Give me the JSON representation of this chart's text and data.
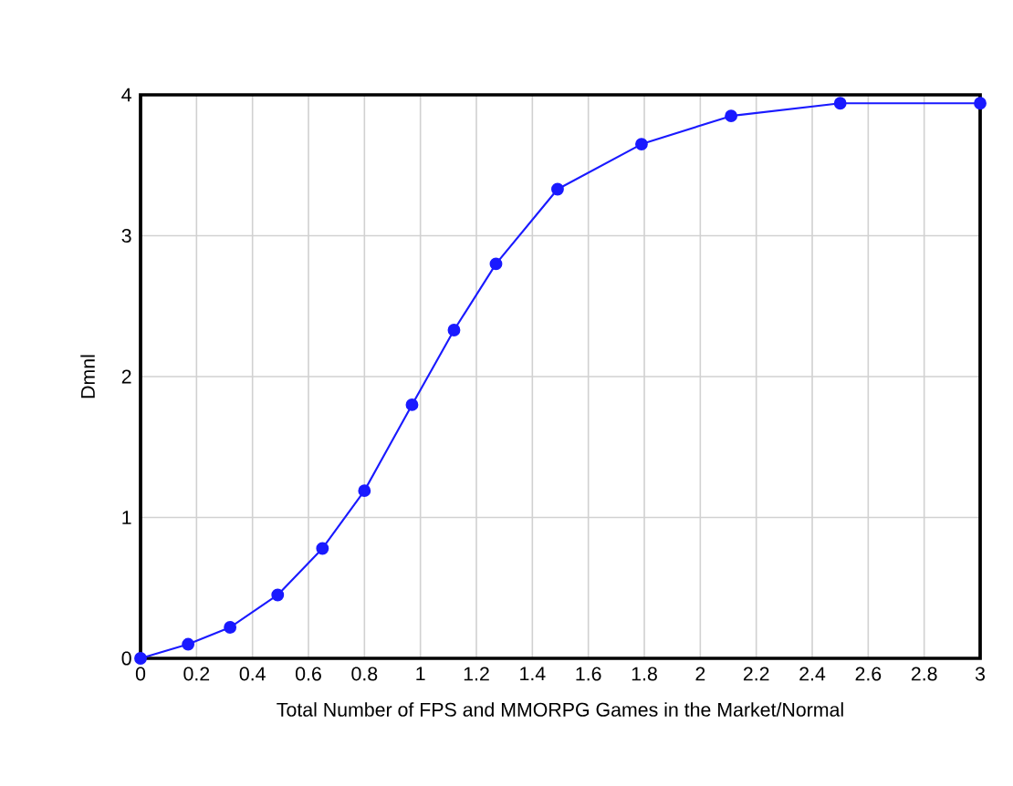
{
  "chart_data": {
    "type": "line",
    "xlabel": "Total Number of FPS and MMORPG Games in the Market/Normal",
    "ylabel": "Dmnl",
    "x": [
      0,
      0.17,
      0.32,
      0.49,
      0.65,
      0.8,
      0.97,
      1.12,
      1.27,
      1.49,
      1.79,
      2.11,
      2.5,
      3.0
    ],
    "series": [
      {
        "color": "#1a1aff",
        "values": [
          0,
          0.1,
          0.22,
          0.45,
          0.78,
          1.19,
          1.8,
          2.33,
          2.8,
          3.33,
          3.65,
          3.85,
          3.94,
          3.94
        ]
      }
    ],
    "xlim": [
      0,
      3
    ],
    "ylim": [
      0,
      4
    ],
    "xticks": [
      0,
      0.2,
      0.4,
      0.6,
      0.8,
      1,
      1.2,
      1.4,
      1.6,
      1.8,
      2,
      2.2,
      2.4,
      2.6,
      2.8,
      3
    ],
    "yticks": [
      0,
      1,
      2,
      3,
      4
    ],
    "grid": true,
    "marker": "circle",
    "line_style": "solid"
  }
}
